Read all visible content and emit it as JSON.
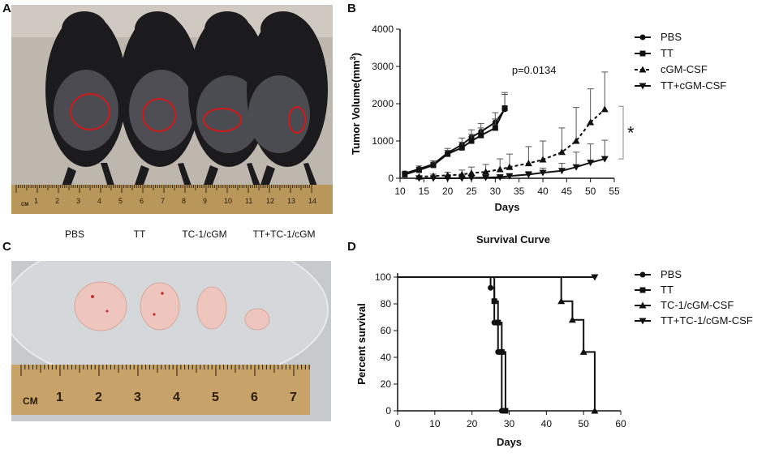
{
  "panel_letters": {
    "a": "A",
    "b": "B",
    "c": "C",
    "d": "D"
  },
  "photo_a": {
    "ruler_unit": "CM",
    "ruler_numbers": [
      "1",
      "2",
      "3",
      "4",
      "5",
      "6",
      "7",
      "8",
      "9",
      "10",
      "11",
      "12",
      "13",
      "14"
    ],
    "group_labels": [
      "PBS",
      "TT",
      "TC-1/cGM",
      "TT+TC-1/cGM"
    ],
    "colors": {
      "background": "#bdb7ae",
      "fur": "#1b1a1c",
      "tumor_circle": "#d01a1a",
      "ruler": "#b9975a"
    }
  },
  "photo_c": {
    "ruler_unit": "CM",
    "ruler_numbers": [
      "1",
      "2",
      "3",
      "4",
      "5",
      "6",
      "7"
    ],
    "colors": {
      "background": "#c7cacd",
      "tumor": "#efc6be",
      "ruler": "#c7a36a"
    }
  },
  "chart_data": [
    {
      "type": "line",
      "panel": "B",
      "title": "",
      "xlabel": "Days",
      "ylabel_main": "Tumor Volume(mm",
      "ylabel_sup": "3",
      "ylabel_end": ")",
      "xlim": [
        10,
        55
      ],
      "ylim": [
        0,
        4000
      ],
      "xticks": [
        10,
        15,
        20,
        25,
        30,
        35,
        40,
        45,
        50,
        55
      ],
      "yticks": [
        0,
        1000,
        2000,
        3000,
        4000
      ],
      "annotation": "p=0.0134",
      "significance": "*",
      "legend_position": "top-right",
      "series": [
        {
          "name": "PBS",
          "marker": "circle",
          "dash": "solid",
          "x": [
            11,
            14,
            17,
            20,
            23,
            25,
            27,
            30,
            32
          ],
          "y": [
            130,
            250,
            380,
            680,
            900,
            1100,
            1250,
            1500,
            1850
          ],
          "err": [
            60,
            80,
            90,
            120,
            180,
            200,
            220,
            260,
            400
          ]
        },
        {
          "name": "TT",
          "marker": "square",
          "dash": "solid",
          "x": [
            11,
            14,
            17,
            20,
            23,
            25,
            27,
            30,
            32
          ],
          "y": [
            100,
            220,
            350,
            650,
            820,
            1000,
            1150,
            1350,
            1880
          ],
          "err": [
            50,
            70,
            80,
            100,
            150,
            180,
            200,
            240,
            420
          ]
        },
        {
          "name": "cGM-CSF",
          "marker": "triangle",
          "dash": "dashed",
          "x": [
            14,
            17,
            20,
            23,
            25,
            28,
            31,
            33,
            37,
            40,
            44,
            47,
            50,
            53
          ],
          "y": [
            40,
            60,
            80,
            100,
            140,
            170,
            240,
            300,
            400,
            500,
            700,
            1000,
            1500,
            1850
          ],
          "err": [
            30,
            50,
            80,
            120,
            160,
            200,
            280,
            350,
            450,
            500,
            650,
            900,
            900,
            1000
          ]
        },
        {
          "name": "TT+cGM-CSF",
          "marker": "triangle-down",
          "dash": "solid",
          "x": [
            14,
            17,
            20,
            23,
            25,
            28,
            31,
            33,
            37,
            40,
            44,
            47,
            50,
            53
          ],
          "y": [
            0,
            0,
            0,
            0,
            10,
            20,
            30,
            60,
            100,
            150,
            200,
            300,
            420,
            520
          ],
          "err": [
            0,
            0,
            0,
            0,
            10,
            20,
            30,
            50,
            80,
            120,
            200,
            400,
            500,
            500
          ]
        }
      ]
    },
    {
      "type": "line",
      "panel": "D",
      "title": "Survival Curve",
      "xlabel": "Days",
      "ylabel": "Percent survival",
      "xlim": [
        0,
        60
      ],
      "ylim": [
        0,
        100
      ],
      "xticks": [
        0,
        10,
        20,
        30,
        40,
        50,
        60
      ],
      "yticks": [
        0,
        20,
        40,
        60,
        80,
        100
      ],
      "legend_position": "top-right",
      "series": [
        {
          "name": "PBS",
          "marker": "circle",
          "steps": [
            [
              0,
              100
            ],
            [
              25,
              92
            ],
            [
              26,
              66
            ],
            [
              27,
              44
            ],
            [
              28,
              0
            ]
          ]
        },
        {
          "name": "TT",
          "marker": "square",
          "steps": [
            [
              0,
              100
            ],
            [
              26,
              82
            ],
            [
              27,
              66
            ],
            [
              28,
              44
            ],
            [
              29,
              0
            ]
          ]
        },
        {
          "name": "TC-1/cGM-CSF",
          "marker": "triangle",
          "steps": [
            [
              0,
              100
            ],
            [
              44,
              82
            ],
            [
              47,
              68
            ],
            [
              50,
              44
            ],
            [
              53,
              0
            ]
          ]
        },
        {
          "name": "TT+TC-1/cGM-CSF",
          "marker": "triangle-down",
          "steps": [
            [
              0,
              100
            ],
            [
              53,
              100
            ]
          ]
        }
      ]
    }
  ]
}
